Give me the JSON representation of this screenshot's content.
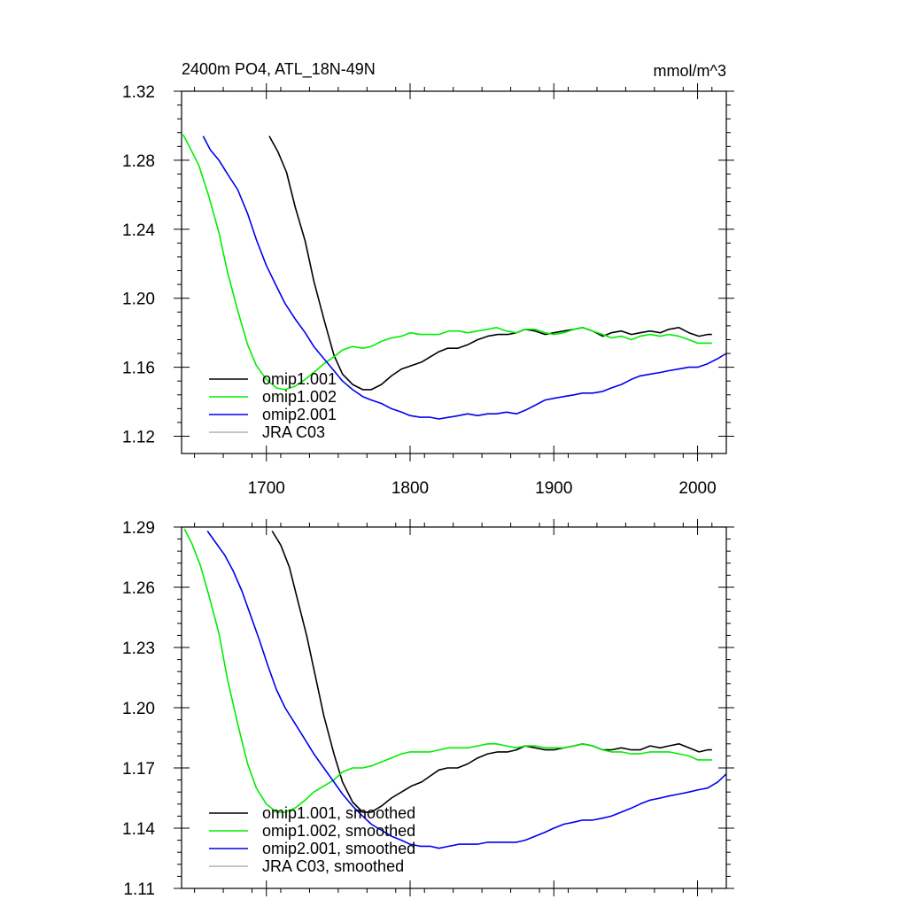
{
  "chart_data": [
    {
      "type": "line",
      "title": "2400m PO4, ATL_18N-49N",
      "units": "mmol/m^3",
      "xlim": [
        1641,
        2020
      ],
      "ylim": [
        1.11,
        1.32
      ],
      "xticks": [
        1700,
        1800,
        1900,
        2000
      ],
      "xtick_labels": [
        "1700",
        "1800",
        "1900",
        "2000"
      ],
      "yticks": [
        1.12,
        1.16,
        1.2,
        1.24,
        1.28,
        1.32
      ],
      "ytick_labels": [
        "1.12",
        "1.16",
        "1.20",
        "1.24",
        "1.28",
        "1.32"
      ],
      "legend_position": "bottom-left",
      "series": [
        {
          "name": "omip1.001",
          "color": "#000000",
          "x": [
            1702,
            1708,
            1714,
            1720,
            1727,
            1733,
            1740,
            1747,
            1753,
            1760,
            1767,
            1773,
            1780,
            1787,
            1794,
            1801,
            1808,
            1814,
            1820,
            1826,
            1833,
            1840,
            1847,
            1854,
            1861,
            1868,
            1874,
            1880,
            1887,
            1894,
            1900,
            1907,
            1914,
            1920,
            1927,
            1934,
            1940,
            1947,
            1954,
            1960,
            1967,
            1974,
            1980,
            1987,
            1994,
            2001,
            2007,
            2010
          ],
          "y": [
            1.294,
            1.285,
            1.273,
            1.253,
            1.233,
            1.21,
            1.188,
            1.167,
            1.156,
            1.15,
            1.147,
            1.147,
            1.15,
            1.155,
            1.159,
            1.161,
            1.163,
            1.166,
            1.169,
            1.171,
            1.171,
            1.173,
            1.176,
            1.178,
            1.179,
            1.179,
            1.18,
            1.182,
            1.181,
            1.179,
            1.18,
            1.181,
            1.182,
            1.183,
            1.181,
            1.178,
            1.18,
            1.181,
            1.179,
            1.18,
            1.181,
            1.18,
            1.182,
            1.183,
            1.18,
            1.178,
            1.179,
            1.179
          ]
        },
        {
          "name": "omip1.002",
          "color": "#00ee00",
          "x": [
            1642,
            1647,
            1653,
            1660,
            1667,
            1673,
            1680,
            1687,
            1693,
            1700,
            1707,
            1713,
            1720,
            1727,
            1733,
            1740,
            1747,
            1753,
            1760,
            1767,
            1773,
            1780,
            1787,
            1794,
            1800,
            1807,
            1814,
            1820,
            1827,
            1834,
            1840,
            1847,
            1854,
            1860,
            1867,
            1874,
            1880,
            1887,
            1894,
            1900,
            1907,
            1914,
            1920,
            1927,
            1934,
            1940,
            1947,
            1954,
            1960,
            1967,
            1974,
            1980,
            1987,
            1994,
            2000,
            2007,
            2010
          ],
          "y": [
            1.295,
            1.287,
            1.277,
            1.259,
            1.238,
            1.215,
            1.193,
            1.173,
            1.161,
            1.153,
            1.148,
            1.147,
            1.149,
            1.153,
            1.157,
            1.162,
            1.166,
            1.17,
            1.172,
            1.171,
            1.172,
            1.175,
            1.177,
            1.178,
            1.18,
            1.179,
            1.179,
            1.179,
            1.181,
            1.181,
            1.18,
            1.181,
            1.182,
            1.183,
            1.181,
            1.18,
            1.182,
            1.182,
            1.18,
            1.179,
            1.18,
            1.182,
            1.183,
            1.181,
            1.179,
            1.177,
            1.178,
            1.176,
            1.178,
            1.179,
            1.178,
            1.179,
            1.178,
            1.176,
            1.174,
            1.174,
            1.174
          ]
        },
        {
          "name": "omip2.001",
          "color": "#0000ee",
          "x": [
            1656,
            1661,
            1667,
            1673,
            1680,
            1687,
            1693,
            1700,
            1707,
            1713,
            1720,
            1727,
            1733,
            1740,
            1747,
            1753,
            1760,
            1767,
            1773,
            1780,
            1787,
            1794,
            1800,
            1807,
            1814,
            1820,
            1827,
            1834,
            1840,
            1847,
            1854,
            1860,
            1867,
            1874,
            1880,
            1887,
            1894,
            1900,
            1907,
            1914,
            1920,
            1927,
            1934,
            1940,
            1947,
            1954,
            1960,
            1967,
            1974,
            1980,
            1987,
            1994,
            2000,
            2007,
            2014,
            2020
          ],
          "y": [
            1.294,
            1.286,
            1.28,
            1.272,
            1.263,
            1.249,
            1.234,
            1.219,
            1.207,
            1.197,
            1.188,
            1.18,
            1.172,
            1.165,
            1.158,
            1.152,
            1.147,
            1.143,
            1.141,
            1.139,
            1.136,
            1.134,
            1.132,
            1.131,
            1.131,
            1.13,
            1.131,
            1.132,
            1.133,
            1.132,
            1.133,
            1.133,
            1.134,
            1.133,
            1.135,
            1.138,
            1.141,
            1.142,
            1.143,
            1.144,
            1.145,
            1.145,
            1.146,
            1.148,
            1.15,
            1.153,
            1.155,
            1.156,
            1.157,
            1.158,
            1.159,
            1.16,
            1.16,
            1.162,
            1.165,
            1.168
          ]
        },
        {
          "name": "JRA C03",
          "color": "#b4b4b4",
          "x": [],
          "y": []
        }
      ]
    },
    {
      "type": "line",
      "xlim": [
        1641,
        2020
      ],
      "ylim": [
        1.11,
        1.29
      ],
      "xticks": [
        1700,
        1800,
        1900,
        2000
      ],
      "yticks": [
        1.11,
        1.14,
        1.17,
        1.2,
        1.23,
        1.26,
        1.29
      ],
      "ytick_labels": [
        "1.11",
        "1.14",
        "1.17",
        "1.20",
        "1.23",
        "1.26",
        "1.29"
      ],
      "legend_position": "bottom-left",
      "series": [
        {
          "name": "omip1.001, smoothed",
          "color": "#000000",
          "x": [
            1704,
            1710,
            1716,
            1722,
            1728,
            1734,
            1740,
            1747,
            1753,
            1760,
            1767,
            1773,
            1780,
            1787,
            1794,
            1801,
            1808,
            1814,
            1820,
            1826,
            1833,
            1840,
            1847,
            1854,
            1861,
            1868,
            1874,
            1880,
            1887,
            1894,
            1900,
            1907,
            1914,
            1920,
            1927,
            1934,
            1940,
            1947,
            1954,
            1960,
            1967,
            1974,
            1980,
            1987,
            1994,
            2001,
            2007,
            2010
          ],
          "y": [
            1.288,
            1.281,
            1.27,
            1.253,
            1.236,
            1.216,
            1.196,
            1.177,
            1.163,
            1.153,
            1.148,
            1.148,
            1.151,
            1.155,
            1.158,
            1.161,
            1.163,
            1.166,
            1.169,
            1.17,
            1.17,
            1.172,
            1.175,
            1.177,
            1.178,
            1.178,
            1.179,
            1.181,
            1.18,
            1.179,
            1.179,
            1.18,
            1.181,
            1.182,
            1.181,
            1.179,
            1.179,
            1.18,
            1.179,
            1.179,
            1.181,
            1.18,
            1.181,
            1.182,
            1.18,
            1.178,
            1.179,
            1.179
          ]
        },
        {
          "name": "omip1.002, smoothed",
          "color": "#00ee00",
          "x": [
            1643,
            1648,
            1654,
            1660,
            1667,
            1673,
            1680,
            1687,
            1693,
            1700,
            1707,
            1713,
            1720,
            1727,
            1733,
            1740,
            1747,
            1753,
            1760,
            1767,
            1773,
            1780,
            1787,
            1794,
            1800,
            1807,
            1814,
            1820,
            1827,
            1834,
            1840,
            1847,
            1854,
            1860,
            1867,
            1874,
            1880,
            1887,
            1894,
            1900,
            1907,
            1914,
            1920,
            1927,
            1934,
            1940,
            1947,
            1954,
            1960,
            1967,
            1974,
            1980,
            1987,
            1994,
            2000,
            2007,
            2010
          ],
          "y": [
            1.289,
            1.282,
            1.271,
            1.256,
            1.237,
            1.214,
            1.192,
            1.172,
            1.16,
            1.152,
            1.148,
            1.148,
            1.15,
            1.154,
            1.158,
            1.161,
            1.164,
            1.168,
            1.17,
            1.17,
            1.171,
            1.173,
            1.175,
            1.177,
            1.178,
            1.178,
            1.178,
            1.179,
            1.18,
            1.18,
            1.18,
            1.181,
            1.182,
            1.182,
            1.181,
            1.18,
            1.181,
            1.181,
            1.18,
            1.18,
            1.18,
            1.181,
            1.182,
            1.181,
            1.179,
            1.178,
            1.178,
            1.177,
            1.177,
            1.178,
            1.178,
            1.178,
            1.177,
            1.176,
            1.174,
            1.174,
            1.174
          ]
        },
        {
          "name": "omip2.001, smoothed",
          "color": "#0000ee",
          "x": [
            1659,
            1665,
            1671,
            1677,
            1683,
            1689,
            1695,
            1701,
            1707,
            1713,
            1720,
            1727,
            1733,
            1740,
            1747,
            1753,
            1760,
            1767,
            1773,
            1780,
            1787,
            1794,
            1800,
            1807,
            1814,
            1820,
            1827,
            1834,
            1840,
            1847,
            1854,
            1860,
            1867,
            1874,
            1880,
            1887,
            1894,
            1900,
            1907,
            1914,
            1920,
            1927,
            1934,
            1940,
            1947,
            1954,
            1960,
            1967,
            1974,
            1980,
            1987,
            1994,
            2000,
            2007,
            2014,
            2020
          ],
          "y": [
            1.288,
            1.282,
            1.276,
            1.268,
            1.258,
            1.246,
            1.234,
            1.221,
            1.209,
            1.2,
            1.192,
            1.184,
            1.177,
            1.17,
            1.163,
            1.157,
            1.151,
            1.146,
            1.142,
            1.139,
            1.136,
            1.134,
            1.132,
            1.131,
            1.131,
            1.13,
            1.131,
            1.132,
            1.132,
            1.132,
            1.133,
            1.133,
            1.133,
            1.133,
            1.134,
            1.136,
            1.138,
            1.14,
            1.142,
            1.143,
            1.144,
            1.144,
            1.145,
            1.146,
            1.148,
            1.15,
            1.152,
            1.154,
            1.155,
            1.156,
            1.157,
            1.158,
            1.159,
            1.16,
            1.163,
            1.167
          ]
        },
        {
          "name": "JRA C03, smoothed",
          "color": "#b4b4b4",
          "x": [],
          "y": []
        }
      ]
    }
  ]
}
